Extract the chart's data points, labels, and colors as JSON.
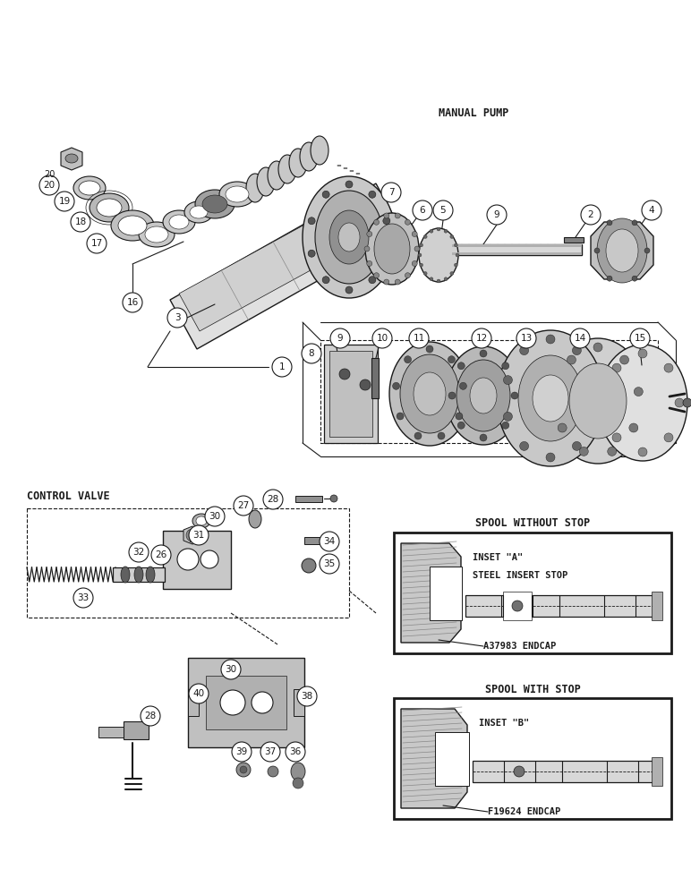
{
  "bg_color": "#ffffff",
  "line_color": "#1a1a1a",
  "label_manual_pump": "MANUAL PUMP",
  "label_control_valve": "CONTROL VALVE",
  "label_spool_without": "SPOOL WITHOUT STOP",
  "label_spool_with": "SPOOL WITH STOP",
  "label_inset_a": "INSET \"A\"",
  "label_inset_b": "INSET \"B\"",
  "label_steel_insert": "STEEL INSERT STOP",
  "label_endcap_a": "A37983 ENDCAP",
  "label_endcap_b": "F19624 ENDCAP",
  "figw": 7.72,
  "figh": 10.0,
  "dpi": 100
}
